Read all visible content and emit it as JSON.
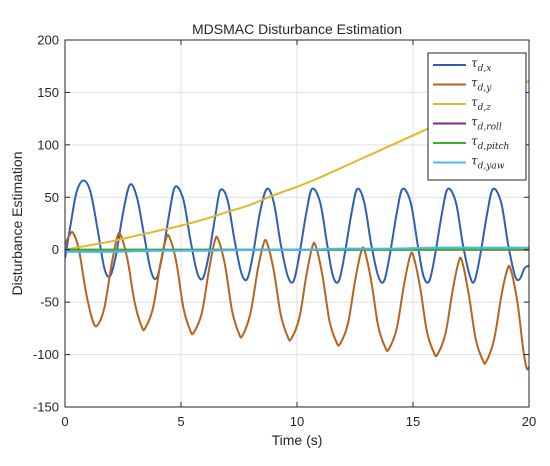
{
  "chart_data": {
    "type": "line",
    "title": "MDSMAC Disturbance Estimation",
    "xlabel": "Time (s)",
    "ylabel": "Disturbance Estimation",
    "xlim": [
      0,
      20
    ],
    "ylim": [
      -150,
      200
    ],
    "xticks": [
      0,
      5,
      10,
      15,
      20
    ],
    "yticks": [
      -150,
      -100,
      -50,
      0,
      50,
      100,
      150,
      200
    ],
    "grid": true,
    "legend_position": "top-right",
    "series": [
      {
        "name": "τd,x",
        "symbol": "τ",
        "subscript": "d,x",
        "color": "#2f5fb5",
        "points": [
          [
            0,
            -8
          ],
          [
            0.25,
            25
          ],
          [
            0.5,
            55
          ],
          [
            0.8,
            66
          ],
          [
            1.1,
            55
          ],
          [
            1.4,
            20
          ],
          [
            1.7,
            -18
          ],
          [
            1.95,
            -25
          ],
          [
            2.2,
            -5
          ],
          [
            2.5,
            35
          ],
          [
            2.8,
            62
          ],
          [
            3.1,
            50
          ],
          [
            3.4,
            15
          ],
          [
            3.7,
            -20
          ],
          [
            3.95,
            -27
          ],
          [
            4.2,
            -5
          ],
          [
            4.5,
            35
          ],
          [
            4.75,
            60
          ],
          [
            5.1,
            48
          ],
          [
            5.4,
            10
          ],
          [
            5.7,
            -22
          ],
          [
            5.95,
            -27
          ],
          [
            6.2,
            -5
          ],
          [
            6.5,
            35
          ],
          [
            6.7,
            57
          ],
          [
            7.0,
            48
          ],
          [
            7.3,
            10
          ],
          [
            7.6,
            -22
          ],
          [
            7.85,
            -28
          ],
          [
            8.1,
            -5
          ],
          [
            8.4,
            35
          ],
          [
            8.7,
            58
          ],
          [
            9.0,
            45
          ],
          [
            9.3,
            5
          ],
          [
            9.6,
            -25
          ],
          [
            9.85,
            -30
          ],
          [
            10.1,
            -5
          ],
          [
            10.4,
            35
          ],
          [
            10.65,
            58
          ],
          [
            11.0,
            45
          ],
          [
            11.3,
            5
          ],
          [
            11.55,
            -25
          ],
          [
            11.8,
            -30
          ],
          [
            12.05,
            -5
          ],
          [
            12.35,
            35
          ],
          [
            12.6,
            58
          ],
          [
            12.9,
            45
          ],
          [
            13.2,
            5
          ],
          [
            13.5,
            -25
          ],
          [
            13.75,
            -30
          ],
          [
            14.0,
            -5
          ],
          [
            14.3,
            35
          ],
          [
            14.55,
            58
          ],
          [
            14.9,
            45
          ],
          [
            15.2,
            5
          ],
          [
            15.45,
            -25
          ],
          [
            15.7,
            -30
          ],
          [
            15.95,
            -5
          ],
          [
            16.25,
            35
          ],
          [
            16.5,
            58
          ],
          [
            16.85,
            45
          ],
          [
            17.15,
            5
          ],
          [
            17.45,
            -25
          ],
          [
            17.65,
            -30
          ],
          [
            17.9,
            -5
          ],
          [
            18.2,
            35
          ],
          [
            18.45,
            58
          ],
          [
            18.8,
            45
          ],
          [
            19.1,
            5
          ],
          [
            19.4,
            -25
          ],
          [
            19.6,
            -28
          ],
          [
            19.8,
            -18
          ],
          [
            20,
            -15
          ]
        ]
      },
      {
        "name": "τd,y",
        "symbol": "τ",
        "subscript": "d,y",
        "color": "#b5651d",
        "points": [
          [
            0,
            5
          ],
          [
            0.2,
            14
          ],
          [
            0.35,
            16
          ],
          [
            0.6,
            0
          ],
          [
            0.9,
            -40
          ],
          [
            1.2,
            -68
          ],
          [
            1.4,
            -72
          ],
          [
            1.7,
            -55
          ],
          [
            2.0,
            -15
          ],
          [
            2.25,
            12
          ],
          [
            2.4,
            14
          ],
          [
            2.7,
            -10
          ],
          [
            3.0,
            -50
          ],
          [
            3.3,
            -73
          ],
          [
            3.45,
            -75
          ],
          [
            3.8,
            -55
          ],
          [
            4.1,
            -15
          ],
          [
            4.35,
            10
          ],
          [
            4.5,
            12
          ],
          [
            4.8,
            -12
          ],
          [
            5.1,
            -55
          ],
          [
            5.4,
            -77
          ],
          [
            5.55,
            -79
          ],
          [
            5.9,
            -60
          ],
          [
            6.2,
            -20
          ],
          [
            6.45,
            8
          ],
          [
            6.6,
            10
          ],
          [
            6.9,
            -15
          ],
          [
            7.2,
            -58
          ],
          [
            7.5,
            -80
          ],
          [
            7.65,
            -82
          ],
          [
            8.0,
            -60
          ],
          [
            8.3,
            -20
          ],
          [
            8.55,
            5
          ],
          [
            8.7,
            7
          ],
          [
            9.0,
            -20
          ],
          [
            9.3,
            -62
          ],
          [
            9.6,
            -83
          ],
          [
            9.75,
            -85
          ],
          [
            10.1,
            -65
          ],
          [
            10.4,
            -25
          ],
          [
            10.65,
            2
          ],
          [
            10.8,
            4
          ],
          [
            11.1,
            -25
          ],
          [
            11.4,
            -68
          ],
          [
            11.7,
            -88
          ],
          [
            11.85,
            -90
          ],
          [
            12.2,
            -70
          ],
          [
            12.5,
            -30
          ],
          [
            12.75,
            -3
          ],
          [
            12.9,
            0
          ],
          [
            13.2,
            -30
          ],
          [
            13.5,
            -73
          ],
          [
            13.8,
            -93
          ],
          [
            13.95,
            -95
          ],
          [
            14.3,
            -75
          ],
          [
            14.6,
            -35
          ],
          [
            14.85,
            -8
          ],
          [
            15.0,
            -5
          ],
          [
            15.3,
            -35
          ],
          [
            15.6,
            -78
          ],
          [
            15.9,
            -98
          ],
          [
            16.05,
            -100
          ],
          [
            16.4,
            -80
          ],
          [
            16.7,
            -40
          ],
          [
            16.95,
            -13
          ],
          [
            17.1,
            -10
          ],
          [
            17.4,
            -42
          ],
          [
            17.7,
            -85
          ],
          [
            18.0,
            -105
          ],
          [
            18.15,
            -107
          ],
          [
            18.5,
            -85
          ],
          [
            18.8,
            -45
          ],
          [
            19.05,
            -20
          ],
          [
            19.2,
            -18
          ],
          [
            19.5,
            -50
          ],
          [
            19.75,
            -95
          ],
          [
            19.9,
            -113
          ],
          [
            20,
            -112
          ]
        ]
      },
      {
        "name": "τd,z",
        "symbol": "τ",
        "subscript": "d,z",
        "color": "#e3b72a",
        "points": [
          [
            0,
            0
          ],
          [
            1,
            4
          ],
          [
            2,
            8
          ],
          [
            3,
            13
          ],
          [
            4,
            18
          ],
          [
            5,
            23
          ],
          [
            6,
            29
          ],
          [
            7,
            36
          ],
          [
            8,
            43
          ],
          [
            9,
            52
          ],
          [
            10,
            60
          ],
          [
            11,
            69
          ],
          [
            12,
            79
          ],
          [
            13,
            89
          ],
          [
            14,
            99
          ],
          [
            15,
            109
          ],
          [
            16,
            119
          ],
          [
            17,
            129
          ],
          [
            18,
            139
          ],
          [
            19,
            150
          ],
          [
            20,
            161
          ]
        ]
      },
      {
        "name": "τd,roll",
        "symbol": "τ",
        "subscript": "d,roll",
        "color": "#7e2f8e",
        "points": [
          [
            0,
            0
          ],
          [
            20,
            0
          ]
        ]
      },
      {
        "name": "τd,pitch",
        "symbol": "τ",
        "subscript": "d,pitch",
        "color": "#3fae2a",
        "points": [
          [
            0,
            0
          ],
          [
            5,
            0
          ],
          [
            10,
            0
          ],
          [
            15,
            0
          ],
          [
            20,
            0
          ]
        ]
      },
      {
        "name": "τd,yaw",
        "symbol": "τ",
        "subscript": "d,yaw",
        "color": "#4db8f0",
        "points": [
          [
            0,
            -2
          ],
          [
            2,
            -2
          ],
          [
            4,
            -1
          ],
          [
            6,
            -1
          ],
          [
            8,
            0
          ],
          [
            10,
            0
          ],
          [
            12,
            1
          ],
          [
            14,
            1
          ],
          [
            16,
            2
          ],
          [
            18,
            2
          ],
          [
            20,
            2
          ]
        ]
      }
    ]
  }
}
